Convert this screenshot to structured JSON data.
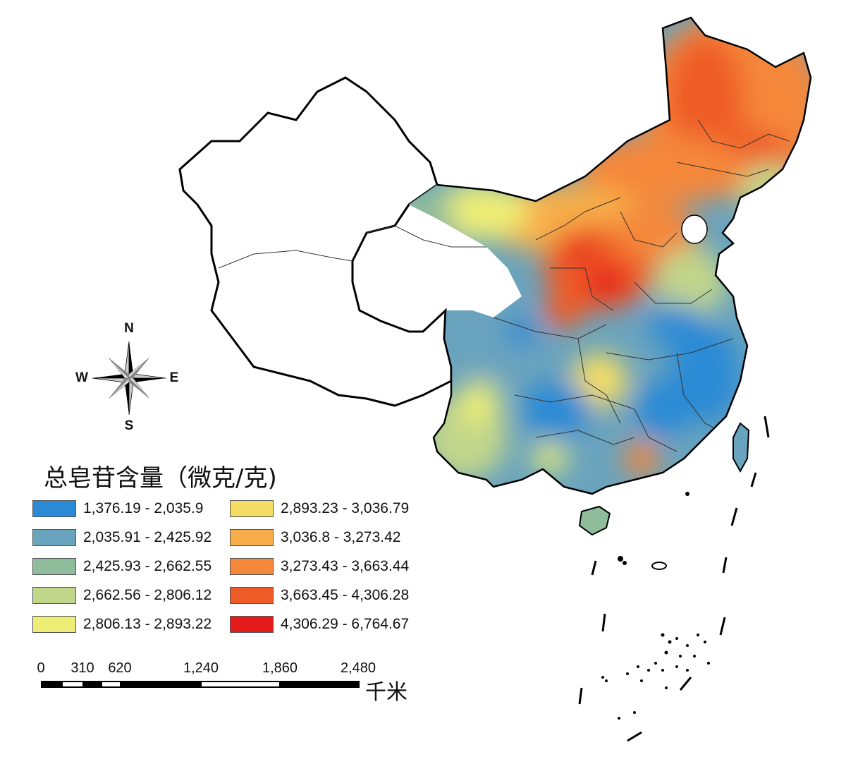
{
  "legend": {
    "title": "总皂苷含量（微克/克)",
    "classes": [
      {
        "label": "1,376.19 - 2,035.9",
        "color": "#2a8ad6"
      },
      {
        "label": "2,035.91 - 2,425.92",
        "color": "#69a3bd"
      },
      {
        "label": "2,425.93 - 2,662.55",
        "color": "#8fbc9a"
      },
      {
        "label": "2,662.56 - 2,806.12",
        "color": "#c2d68a"
      },
      {
        "label": "2,806.13 - 2,893.22",
        "color": "#eeee76"
      },
      {
        "label": "2,893.23 - 3,036.79",
        "color": "#f5dd63"
      },
      {
        "label": "3,036.8 - 3,273.42",
        "color": "#f7ae4a"
      },
      {
        "label": "3,273.43 - 3,663.44",
        "color": "#f5873a"
      },
      {
        "label": "3,663.45 - 4,306.28",
        "color": "#ef5b27"
      },
      {
        "label": "4,306.29 - 6,764.67",
        "color": "#e51b1b"
      }
    ]
  },
  "compass": {
    "n": "N",
    "s": "S",
    "e": "E",
    "w": "W"
  },
  "scale_bar": {
    "ticks": [
      "0",
      "310",
      "620",
      "1,240",
      "1,860",
      "2,480"
    ],
    "unit": "千米"
  }
}
